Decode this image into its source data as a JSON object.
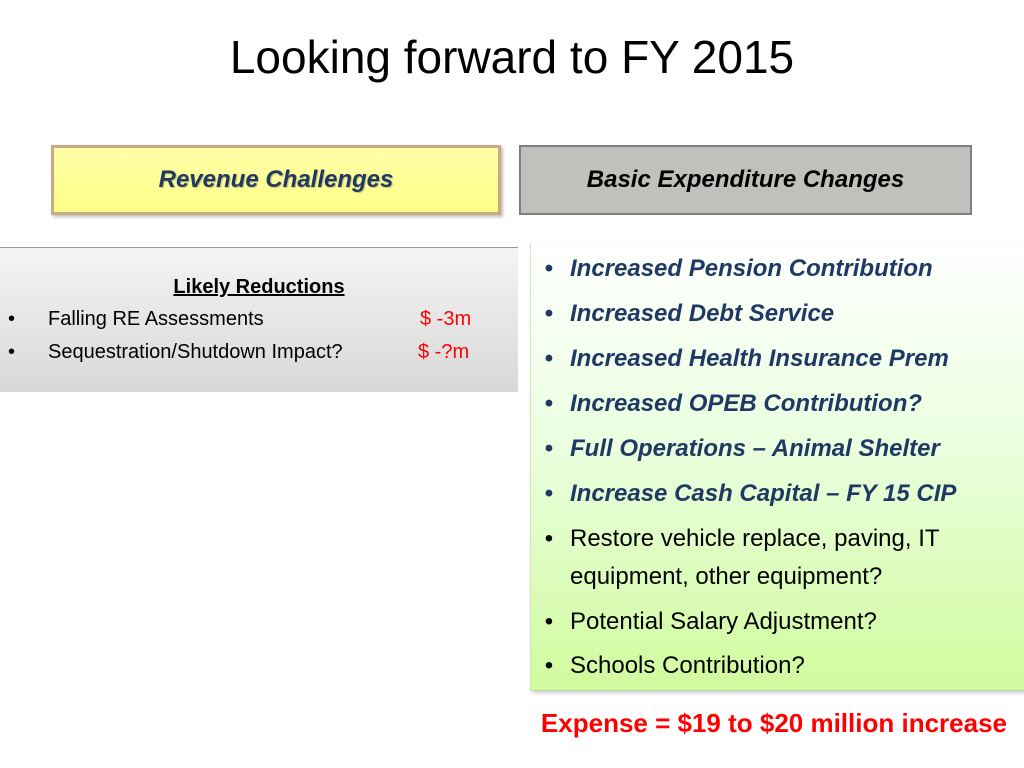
{
  "slide": {
    "title": "Looking forward to FY 2015"
  },
  "revenue": {
    "header": "Revenue Challenges"
  },
  "expenditure": {
    "header": "Basic Expenditure Changes"
  },
  "reductions": {
    "heading": "Likely Reductions",
    "bullet": "•",
    "items": [
      {
        "label": "Falling RE Assessments",
        "amount": "$ -3m"
      },
      {
        "label": "Sequestration/Shutdown Impact?",
        "amount": "$ -?m"
      }
    ]
  },
  "changes": {
    "bullet": "•",
    "items": [
      {
        "text": "Increased Pension Contribution"
      },
      {
        "text": "Increased Debt Service"
      },
      {
        "text": "Increased Health Insurance Prem"
      },
      {
        "text": "Increased OPEB Contribution?"
      },
      {
        "text": "Full Operations – Animal Shelter"
      },
      {
        "text": "Increase Cash Capital – FY 15 CIP"
      },
      {
        "text": "Restore vehicle replace, paving, IT",
        "text2": "equipment, other equipment?"
      },
      {
        "text": "Potential Salary Adjustment?"
      },
      {
        "text": "Schools Contribution?"
      }
    ]
  },
  "footer": {
    "text": "Expense = $19 to $20 million increase"
  },
  "colors": {
    "highlight_text": "#1f3864",
    "amount_red": "#ff0000",
    "revenue_fill": "#ffff99",
    "expenditure_fill": "#c0c0bc"
  }
}
